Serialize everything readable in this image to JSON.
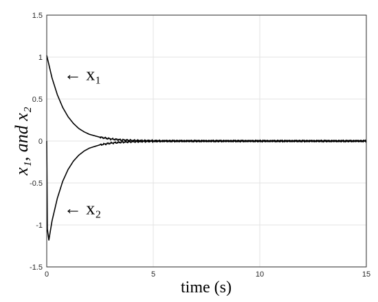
{
  "chart_data": {
    "type": "line",
    "xlabel": "time (s)",
    "ylabel": "x₁, and x₂",
    "xlim": [
      0,
      15
    ],
    "ylim": [
      -1.5,
      1.5
    ],
    "xticks": [
      "0",
      "5",
      "10",
      "15"
    ],
    "yticks": [
      "-1.5",
      "-1",
      "-0.5",
      "0",
      "0.5",
      "1",
      "1.5"
    ],
    "grid": true,
    "series": [
      {
        "name": "x₁",
        "x": [
          0,
          0.25,
          0.5,
          0.75,
          1.0,
          1.25,
          1.5,
          1.75,
          2.0,
          2.5,
          3.0,
          3.5,
          4.0,
          5.0,
          6.0,
          8.0,
          10.0,
          12.0,
          15.0
        ],
        "y": [
          1.02,
          0.75,
          0.55,
          0.4,
          0.29,
          0.21,
          0.15,
          0.11,
          0.08,
          0.045,
          0.025,
          0.013,
          0.007,
          0.003,
          0.0,
          0.0,
          0.0,
          0.0,
          0.0
        ]
      },
      {
        "name": "x₂",
        "x": [
          0,
          0.03,
          0.1,
          0.25,
          0.5,
          0.75,
          1.0,
          1.25,
          1.5,
          1.75,
          2.0,
          2.5,
          3.0,
          3.5,
          4.0,
          5.0,
          6.0,
          8.0,
          10.0,
          12.0,
          15.0
        ],
        "y": [
          0.0,
          -1.05,
          -1.18,
          -0.95,
          -0.68,
          -0.48,
          -0.34,
          -0.24,
          -0.17,
          -0.12,
          -0.085,
          -0.045,
          -0.025,
          -0.014,
          -0.008,
          -0.003,
          0.0,
          0.0,
          0.0,
          0.0,
          0.0
        ]
      }
    ],
    "annotations": [
      {
        "text": "← x₁",
        "x": 0.8,
        "y": 0.8
      },
      {
        "text": "← x₂",
        "x": 0.8,
        "y": -0.8
      }
    ]
  }
}
